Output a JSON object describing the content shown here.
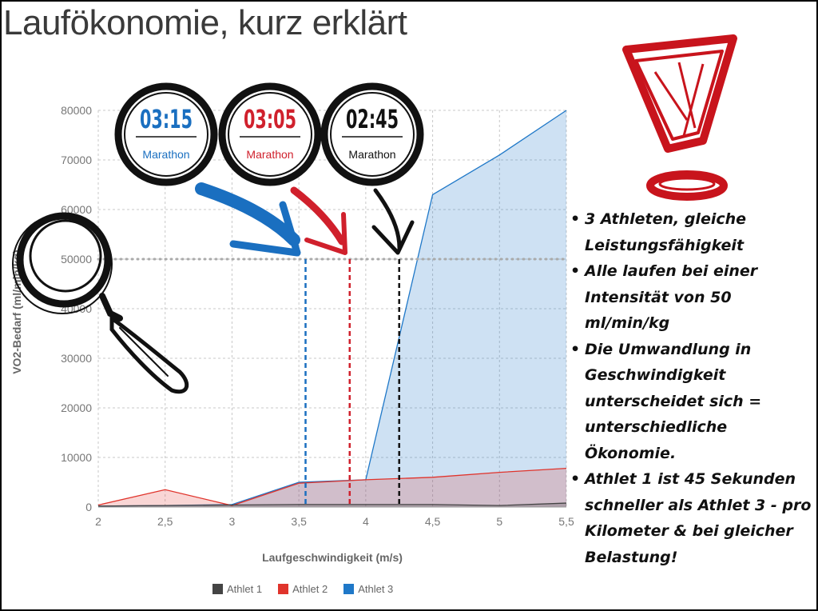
{
  "page": {
    "title": "Laufökonomie, kurz erklärt"
  },
  "badges": [
    {
      "time": "03:15",
      "label": "Marathon",
      "color": "#1a6fc0"
    },
    {
      "time": "03:05",
      "label": "Marathon",
      "color": "#d0202c"
    },
    {
      "time": "02:45",
      "label": "Marathon",
      "color": "#111111"
    }
  ],
  "bullets": [
    "3 Athleten, gleiche Leistungsfähigkeit",
    "Alle laufen bei einer Intensität von 50 ml/min/kg",
    "Die Umwandlung in Geschwindigkeit unterscheidet sich = unterschiedliche Ökonomie.",
    "Athlet 1 ist 45 Sekunden schneller als Athlet 3 - pro Kilometer & bei gleicher Belastung!"
  ],
  "colors": {
    "athlet1": "#444444",
    "athlet2": "#e0342c",
    "athlet3": "#1f78c8",
    "exclamation": "#c8141c"
  },
  "icons": [
    "magnifier-icon",
    "exclamation-icon",
    "arrow-icon"
  ],
  "chart_data": {
    "type": "area",
    "xlabel": "Laufgeschwindigkeit (m/s)",
    "ylabel": "VO2-Bedarf (ml/min/kg)",
    "x": [
      2,
      2.5,
      3,
      3.5,
      4,
      4.5,
      5,
      5.5
    ],
    "x_tick_labels": [
      "2",
      "2,5",
      "3",
      "3,5",
      "4",
      "4,5",
      "5",
      "5,5"
    ],
    "xlim": [
      2,
      5.5
    ],
    "ylim": [
      0,
      80000
    ],
    "y_ticks": [
      0,
      10000,
      20000,
      30000,
      40000,
      50000,
      60000,
      70000,
      80000
    ],
    "grid": true,
    "legend_position": "bottom",
    "series": [
      {
        "name": "Athlet 1",
        "color": "#444444",
        "values": [
          200,
          300,
          400,
          500,
          500,
          500,
          300,
          800
        ]
      },
      {
        "name": "Athlet 2",
        "color": "#e0342c",
        "values": [
          400,
          3500,
          300,
          4800,
          5500,
          6000,
          7000,
          7800
        ]
      },
      {
        "name": "Athlet 3",
        "color": "#1f78c8",
        "values": [
          200,
          300,
          500,
          5000,
          5500,
          63000,
          71000,
          80000
        ]
      }
    ],
    "reference_line": {
      "y": 50000
    },
    "markers": [
      {
        "x": 3.55,
        "y": 50000,
        "color": "#1a6fc0"
      },
      {
        "x": 3.88,
        "y": 50000,
        "color": "#d0202c"
      },
      {
        "x": 4.25,
        "y": 50000,
        "color": "#111111"
      }
    ]
  }
}
